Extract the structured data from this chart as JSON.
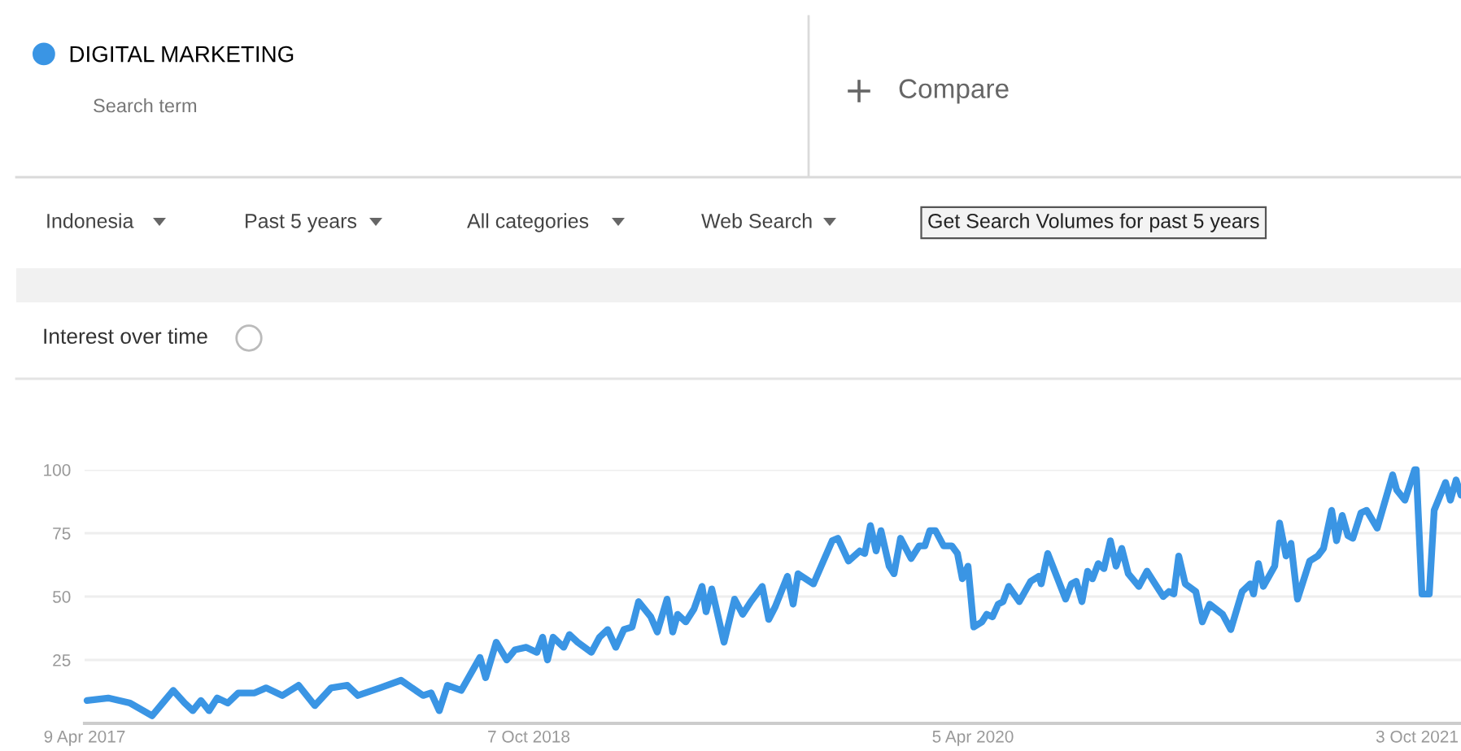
{
  "chart_data": {
    "type": "line",
    "title": "Interest over time",
    "annotations": [
      "Search term",
      "Compare",
      "Indonesia",
      "Past 5 years",
      "All categories",
      "Web Search",
      "Get Search Volumes for past 5 years"
    ],
    "x": [
      "2017-04-12",
      "2017-05-08",
      "2017-06-04",
      "2017-07-01",
      "2017-07-14",
      "2017-07-27",
      "2017-08-10",
      "2017-08-20",
      "2017-08-30",
      "2017-09-09",
      "2017-09-19",
      "2017-10-02",
      "2017-10-15",
      "2017-11-04",
      "2017-11-18",
      "2017-12-08",
      "2017-12-28",
      "2018-01-17",
      "2018-02-06",
      "2018-02-26",
      "2018-03-11",
      "2018-04-07",
      "2018-05-03",
      "2018-05-30",
      "2018-06-09",
      "2018-06-19",
      "2018-06-29",
      "2018-07-16",
      "2018-08-08",
      "2018-08-15",
      "2018-08-28",
      "2018-09-10",
      "2018-09-20",
      "2018-10-04",
      "2018-10-17",
      "2018-10-24",
      "2018-10-30",
      "2018-11-06",
      "2018-11-19",
      "2018-11-26",
      "2018-12-06",
      "2018-12-23",
      "2019-01-02",
      "2019-01-12",
      "2019-01-22",
      "2019-02-01",
      "2019-02-11",
      "2019-02-19",
      "2019-03-06",
      "2019-03-14",
      "2019-03-26",
      "2019-04-02",
      "2019-04-08",
      "2019-04-18",
      "2019-04-28",
      "2019-05-08",
      "2019-05-13",
      "2019-05-20",
      "2019-06-04",
      "2019-06-17",
      "2019-06-27",
      "2019-07-07",
      "2019-07-21",
      "2019-07-29",
      "2019-08-06",
      "2019-08-21",
      "2019-08-28",
      "2019-09-03",
      "2019-09-22",
      "2019-10-15",
      "2019-10-22",
      "2019-11-04",
      "2019-11-18",
      "2019-11-24",
      "2019-12-01",
      "2019-12-08",
      "2019-12-14",
      "2019-12-24",
      "2019-12-30",
      "2020-01-07",
      "2020-01-20",
      "2020-01-30",
      "2020-02-06",
      "2020-02-12",
      "2020-02-19",
      "2020-02-29",
      "2020-03-10",
      "2020-03-17",
      "2020-03-23",
      "2020-03-30",
      "2020-04-06",
      "2020-04-16",
      "2020-04-22",
      "2020-04-29",
      "2020-05-06",
      "2020-05-12",
      "2020-05-19",
      "2020-06-01",
      "2020-06-15",
      "2020-06-25",
      "2020-06-28",
      "2020-07-06",
      "2020-07-28",
      "2020-08-04",
      "2020-08-10",
      "2020-08-17",
      "2020-08-24",
      "2020-08-30",
      "2020-09-06",
      "2020-09-13",
      "2020-09-21",
      "2020-09-28",
      "2020-10-05",
      "2020-10-13",
      "2020-10-26",
      "2020-11-05",
      "2020-11-15",
      "2020-11-25",
      "2020-12-02",
      "2020-12-08",
      "2020-12-14",
      "2020-12-22",
      "2021-01-04",
      "2021-01-12",
      "2021-01-21",
      "2021-02-06",
      "2021-02-16",
      "2021-03-02",
      "2021-03-12",
      "2021-03-16",
      "2021-03-22",
      "2021-03-28",
      "2021-04-11",
      "2021-04-17",
      "2021-04-25",
      "2021-05-01",
      "2021-05-09",
      "2021-05-24",
      "2021-06-03",
      "2021-06-10",
      "2021-06-20",
      "2021-06-26",
      "2021-07-03",
      "2021-07-10",
      "2021-07-16",
      "2021-07-26",
      "2021-08-02",
      "2021-08-15",
      "2021-09-03",
      "2021-09-08",
      "2021-09-18",
      "2021-09-30",
      "2021-10-02",
      "2021-10-09",
      "2021-10-18",
      "2021-10-24",
      "2021-11-07",
      "2021-11-13",
      "2021-11-20",
      "2021-11-26"
    ],
    "series": [
      {
        "name": "DIGITAL MARKETING",
        "color": "#3a95e4",
        "values": [
          9,
          10,
          8,
          3,
          8,
          13,
          8,
          5,
          9,
          5,
          10,
          8,
          12,
          12,
          14,
          11,
          15,
          7,
          14,
          15,
          11,
          14,
          17,
          11,
          12,
          5,
          15,
          13,
          26,
          18,
          32,
          25,
          29,
          30,
          28,
          34,
          25,
          34,
          30,
          35,
          32,
          28,
          34,
          37,
          30,
          37,
          38,
          48,
          42,
          36,
          49,
          36,
          43,
          40,
          45,
          54,
          44,
          53,
          32,
          49,
          43,
          48,
          54,
          41,
          46,
          58,
          47,
          59,
          55,
          72,
          73,
          64,
          68,
          67,
          78,
          68,
          76,
          62,
          59,
          73,
          65,
          70,
          70,
          76,
          76,
          70,
          70,
          67,
          57,
          62,
          38,
          40,
          43,
          42,
          47,
          48,
          54,
          48,
          56,
          58,
          55,
          67,
          49,
          55,
          56,
          48,
          60,
          57,
          63,
          61,
          72,
          62,
          69,
          59,
          54,
          60,
          55,
          50,
          52,
          51,
          66,
          55,
          52,
          40,
          47,
          43,
          37,
          52,
          55,
          51,
          63,
          54,
          62,
          79,
          66,
          71,
          49,
          64,
          66,
          69,
          84,
          72,
          82,
          74,
          73,
          83,
          84,
          77,
          98,
          92,
          88,
          100,
          100,
          51,
          51,
          84,
          95,
          88,
          96,
          90
        ]
      }
    ],
    "xlim": [
      "2017-04-09",
      "2021-11-26"
    ],
    "xticks": [
      {
        "value": "2017-04-09",
        "label": "9 Apr 2017"
      },
      {
        "value": "2018-10-07",
        "label": "7 Oct 2018"
      },
      {
        "value": "2020-04-05",
        "label": "5 Apr 2020"
      },
      {
        "value": "2021-10-03",
        "label": "3 Oct 2021"
      }
    ],
    "ylim": [
      0,
      100
    ],
    "yticks": [
      25,
      50,
      75,
      100
    ],
    "grid": "y",
    "legend": "top left",
    "marker": "none",
    "line_style": "solid"
  }
}
